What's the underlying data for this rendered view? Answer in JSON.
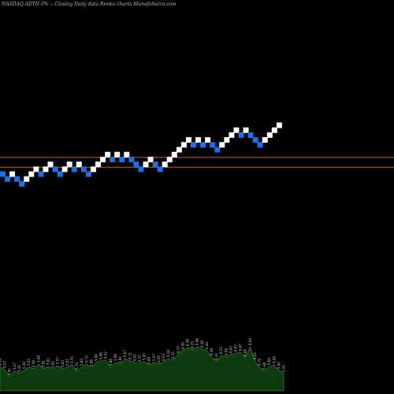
{
  "header": {
    "title": "NASDAQ ADTN  0% -- Closing Daily data  Renko  charts MunafaSutra.com"
  },
  "colors": {
    "background": "#000000",
    "up_brick": "#ffffff",
    "down_brick": "#1e6fe0",
    "support_line": "#c0622a",
    "volume_fill": "#0f3a0f",
    "volume_line": "#2f7a2f",
    "volume_label": "#d0d0d0"
  },
  "chart_data": {
    "type": "renko",
    "title": "NASDAQ ADTN  0% -- Closing Daily data  Renko  charts MunafaSutra.com",
    "xlabel": "",
    "ylabel": "",
    "grid": false,
    "brick_size": 1,
    "bricks": [
      {
        "level": 0,
        "dir": "down"
      },
      {
        "level": -1,
        "dir": "down"
      },
      {
        "level": 0,
        "dir": "up"
      },
      {
        "level": -1,
        "dir": "down"
      },
      {
        "level": -2,
        "dir": "down"
      },
      {
        "level": -1,
        "dir": "up"
      },
      {
        "level": 0,
        "dir": "up"
      },
      {
        "level": 1,
        "dir": "up"
      },
      {
        "level": 0,
        "dir": "down"
      },
      {
        "level": 1,
        "dir": "up"
      },
      {
        "level": 2,
        "dir": "up"
      },
      {
        "level": 1,
        "dir": "down"
      },
      {
        "level": 0,
        "dir": "down"
      },
      {
        "level": 1,
        "dir": "up"
      },
      {
        "level": 2,
        "dir": "up"
      },
      {
        "level": 1,
        "dir": "down"
      },
      {
        "level": 2,
        "dir": "up"
      },
      {
        "level": 1,
        "dir": "down"
      },
      {
        "level": 0,
        "dir": "down"
      },
      {
        "level": 1,
        "dir": "up"
      },
      {
        "level": 2,
        "dir": "up"
      },
      {
        "level": 3,
        "dir": "up"
      },
      {
        "level": 4,
        "dir": "up"
      },
      {
        "level": 3,
        "dir": "down"
      },
      {
        "level": 4,
        "dir": "up"
      },
      {
        "level": 3,
        "dir": "down"
      },
      {
        "level": 4,
        "dir": "up"
      },
      {
        "level": 3,
        "dir": "down"
      },
      {
        "level": 2,
        "dir": "down"
      },
      {
        "level": 1,
        "dir": "down"
      },
      {
        "level": 2,
        "dir": "up"
      },
      {
        "level": 3,
        "dir": "up"
      },
      {
        "level": 2,
        "dir": "down"
      },
      {
        "level": 1,
        "dir": "down"
      },
      {
        "level": 2,
        "dir": "up"
      },
      {
        "level": 3,
        "dir": "up"
      },
      {
        "level": 4,
        "dir": "up"
      },
      {
        "level": 5,
        "dir": "up"
      },
      {
        "level": 6,
        "dir": "up"
      },
      {
        "level": 7,
        "dir": "up"
      },
      {
        "level": 6,
        "dir": "down"
      },
      {
        "level": 7,
        "dir": "up"
      },
      {
        "level": 6,
        "dir": "down"
      },
      {
        "level": 7,
        "dir": "up"
      },
      {
        "level": 6,
        "dir": "down"
      },
      {
        "level": 5,
        "dir": "down"
      },
      {
        "level": 6,
        "dir": "up"
      },
      {
        "level": 7,
        "dir": "up"
      },
      {
        "level": 8,
        "dir": "up"
      },
      {
        "level": 9,
        "dir": "up"
      },
      {
        "level": 8,
        "dir": "down"
      },
      {
        "level": 9,
        "dir": "up"
      },
      {
        "level": 8,
        "dir": "down"
      },
      {
        "level": 7,
        "dir": "down"
      },
      {
        "level": 6,
        "dir": "down"
      },
      {
        "level": 7,
        "dir": "up"
      },
      {
        "level": 8,
        "dir": "up"
      },
      {
        "level": 9,
        "dir": "up"
      },
      {
        "level": 10,
        "dir": "up"
      }
    ],
    "reference_levels": [
      3.5,
      1.5
    ],
    "volume": {
      "values": [
        30,
        27,
        18,
        25,
        22,
        26,
        30,
        28,
        34,
        28,
        31,
        27,
        32,
        28,
        30,
        33,
        25,
        30,
        34,
        29,
        36,
        38,
        39,
        30,
        36,
        33,
        41,
        38,
        36,
        35,
        37,
        32,
        36,
        34,
        36,
        41,
        39,
        46,
        51,
        55,
        52,
        56,
        53,
        51,
        43,
        37,
        45,
        43,
        46,
        48,
        49,
        42,
        56,
        38,
        30,
        25,
        31,
        33,
        26,
        22
      ],
      "labels": [
        "4.59",
        "5.27",
        "4.91",
        "5.27",
        "5.32",
        "5.44",
        "5.52",
        "5.58",
        "5.48",
        "5.61",
        "5.61",
        "5.62",
        "5.57",
        "5.63",
        "5.51",
        "5.70",
        "5.74",
        "5.83",
        "5.72",
        "5.96",
        "5.94",
        "5.96",
        "6.02",
        "5.86",
        "5.96",
        "5.91",
        "6.07",
        "6.11",
        "6.00",
        "6.10",
        "5.93",
        "6.08",
        "5.97",
        "6.05",
        "6.23",
        "6.18",
        "6.35",
        "6.33",
        "6.50",
        "6.58",
        "6.29",
        "6.86",
        "6.38",
        "6.44",
        "6.38",
        "6.32",
        "6.21",
        "6.56",
        "6.43",
        "6.67",
        "6.67",
        "6.64",
        "6.94",
        "6.02",
        "5.75",
        "5.48",
        "5.66",
        "5.59",
        "5.60",
        "5.54"
      ]
    }
  }
}
